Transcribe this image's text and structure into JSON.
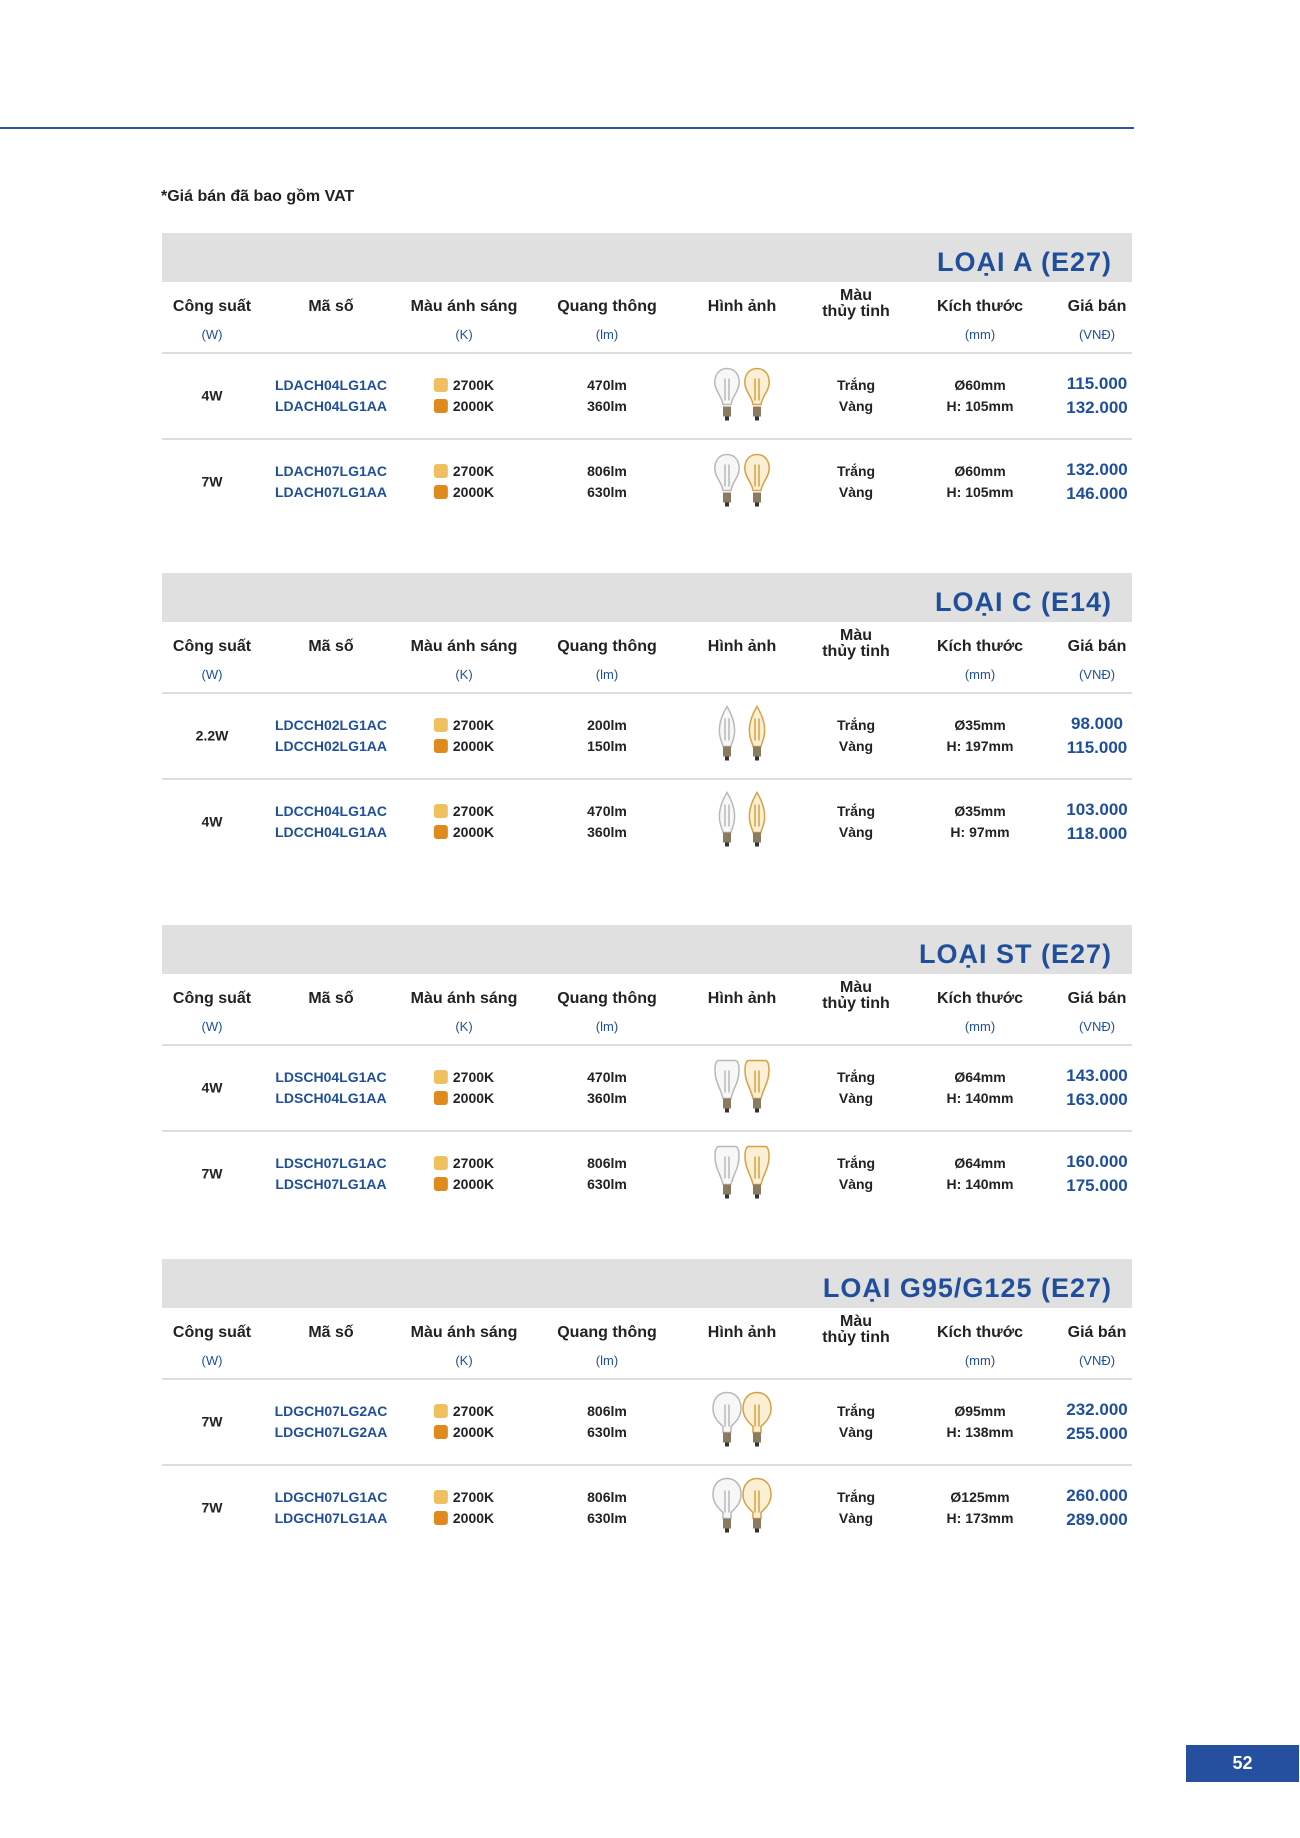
{
  "note": "*Giá bán đã bao gồm VAT",
  "page_number": "52",
  "colors": {
    "accent": "#1f4f9c",
    "swatch_2700K": "#f0c060",
    "swatch_2000K": "#e08a1e"
  },
  "headers": [
    [
      "Công suất",
      "(W)"
    ],
    [
      "Mã số",
      ""
    ],
    [
      "Màu ánh sáng",
      "(K)"
    ],
    [
      "Quang thông",
      "(lm)"
    ],
    [
      "Hình ảnh",
      ""
    ],
    [
      "Màu\nthủy tinh",
      ""
    ],
    [
      "Kích thước",
      "(mm)"
    ],
    [
      "Giá bán",
      "(VNĐ)"
    ]
  ],
  "sections": [
    {
      "title": "LOẠI A (E27)",
      "bulb": "a",
      "rows": [
        {
          "power": "4W",
          "codes": [
            "LDACH04LG1AC",
            "LDACH04LG1AA"
          ],
          "cct": [
            "2700K",
            "2000K"
          ],
          "lumen": [
            "470lm",
            "360lm"
          ],
          "glass": [
            "Trắng",
            "Vàng"
          ],
          "size": [
            "Ø60mm",
            "H: 105mm"
          ],
          "price": [
            "115.000",
            "132.000"
          ]
        },
        {
          "power": "7W",
          "codes": [
            "LDACH07LG1AC",
            "LDACH07LG1AA"
          ],
          "cct": [
            "2700K",
            "2000K"
          ],
          "lumen": [
            "806lm",
            "630lm"
          ],
          "glass": [
            "Trắng",
            "Vàng"
          ],
          "size": [
            "Ø60mm",
            "H: 105mm"
          ],
          "price": [
            "132.000",
            "146.000"
          ]
        }
      ]
    },
    {
      "title": "LOẠI C (E14)",
      "bulb": "c",
      "rows": [
        {
          "power": "2.2W",
          "codes": [
            "LDCCH02LG1AC",
            "LDCCH02LG1AA"
          ],
          "cct": [
            "2700K",
            "2000K"
          ],
          "lumen": [
            "200lm",
            "150lm"
          ],
          "glass": [
            "Trắng",
            "Vàng"
          ],
          "size": [
            "Ø35mm",
            "H: 197mm"
          ],
          "price": [
            "98.000",
            "115.000"
          ]
        },
        {
          "power": "4W",
          "codes": [
            "LDCCH04LG1AC",
            "LDCCH04LG1AA"
          ],
          "cct": [
            "2700K",
            "2000K"
          ],
          "lumen": [
            "470lm",
            "360lm"
          ],
          "glass": [
            "Trắng",
            "Vàng"
          ],
          "size": [
            "Ø35mm",
            "H: 97mm"
          ],
          "price": [
            "103.000",
            "118.000"
          ]
        }
      ]
    },
    {
      "title": "LOẠI ST (E27)",
      "bulb": "st",
      "rows": [
        {
          "power": "4W",
          "codes": [
            "LDSCH04LG1AC",
            "LDSCH04LG1AA"
          ],
          "cct": [
            "2700K",
            "2000K"
          ],
          "lumen": [
            "470lm",
            "360lm"
          ],
          "glass": [
            "Trắng",
            "Vàng"
          ],
          "size": [
            "Ø64mm",
            "H: 140mm"
          ],
          "price": [
            "143.000",
            "163.000"
          ]
        },
        {
          "power": "7W",
          "codes": [
            "LDSCH07LG1AC",
            "LDSCH07LG1AA"
          ],
          "cct": [
            "2700K",
            "2000K"
          ],
          "lumen": [
            "806lm",
            "630lm"
          ],
          "glass": [
            "Trắng",
            "Vàng"
          ],
          "size": [
            "Ø64mm",
            "H: 140mm"
          ],
          "price": [
            "160.000",
            "175.000"
          ]
        }
      ]
    },
    {
      "title": "LOẠI G95/G125 (E27)",
      "bulb": "g",
      "rows": [
        {
          "power": "7W",
          "codes": [
            "LDGCH07LG2AC",
            "LDGCH07LG2AA"
          ],
          "cct": [
            "2700K",
            "2000K"
          ],
          "lumen": [
            "806lm",
            "630lm"
          ],
          "glass": [
            "Trắng",
            "Vàng"
          ],
          "size": [
            "Ø95mm",
            "H: 138mm"
          ],
          "price": [
            "232.000",
            "255.000"
          ]
        },
        {
          "power": "7W",
          "codes": [
            "LDGCH07LG1AC",
            "LDGCH07LG1AA"
          ],
          "cct": [
            "2700K",
            "2000K"
          ],
          "lumen": [
            "806lm",
            "630lm"
          ],
          "glass": [
            "Trắng",
            "Vàng"
          ],
          "size": [
            "Ø125mm",
            "H: 173mm"
          ],
          "price": [
            "260.000",
            "289.000"
          ]
        }
      ]
    }
  ]
}
